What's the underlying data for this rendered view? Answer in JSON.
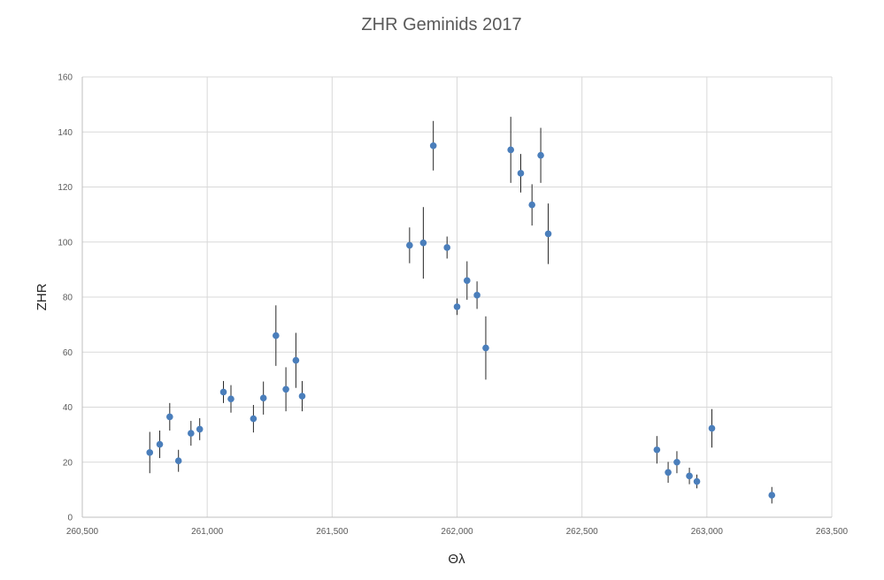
{
  "chart_data": {
    "type": "scatter",
    "title": "ZHR Geminids 2017",
    "xlabel": "Θλ",
    "ylabel": "ZHR",
    "xlim": [
      260500,
      263500
    ],
    "ylim": [
      0,
      160
    ],
    "x_ticks": [
      260500,
      261000,
      261500,
      262000,
      262500,
      263000,
      263500
    ],
    "x_tick_labels": [
      "260,500",
      "261,000",
      "261,500",
      "262,000",
      "262,500",
      "263,000",
      "263,500"
    ],
    "y_ticks": [
      0,
      20,
      40,
      60,
      80,
      100,
      120,
      140,
      160
    ],
    "y_tick_labels": [
      "0",
      "20",
      "40",
      "60",
      "80",
      "100",
      "120",
      "140",
      "160"
    ],
    "grid": true,
    "legend": "none",
    "marker_color": "#4a7ebb",
    "errorbar_color": "#262626",
    "points": [
      {
        "x": 260770,
        "y": 23.5,
        "err": 7.5
      },
      {
        "x": 260810,
        "y": 26.5,
        "err": 5
      },
      {
        "x": 260850,
        "y": 36.5,
        "err": 5
      },
      {
        "x": 260885,
        "y": 20.5,
        "err": 4
      },
      {
        "x": 260935,
        "y": 30.5,
        "err": 4.5
      },
      {
        "x": 260970,
        "y": 32,
        "err": 4
      },
      {
        "x": 261065,
        "y": 45.5,
        "err": 4
      },
      {
        "x": 261095,
        "y": 43,
        "err": 5
      },
      {
        "x": 261185,
        "y": 35.8,
        "err": 5
      },
      {
        "x": 261225,
        "y": 43.3,
        "err": 6
      },
      {
        "x": 261275,
        "y": 66,
        "err": 11
      },
      {
        "x": 261315,
        "y": 46.5,
        "err": 8
      },
      {
        "x": 261355,
        "y": 57,
        "err": 10
      },
      {
        "x": 261380,
        "y": 44,
        "err": 5.5
      },
      {
        "x": 261810,
        "y": 98.8,
        "err": 6.5
      },
      {
        "x": 261865,
        "y": 99.7,
        "err": 13
      },
      {
        "x": 261905,
        "y": 135,
        "err": 9
      },
      {
        "x": 261960,
        "y": 98,
        "err": 4
      },
      {
        "x": 262000,
        "y": 76.5,
        "err": 3
      },
      {
        "x": 262040,
        "y": 86,
        "err": 7
      },
      {
        "x": 262080,
        "y": 80.7,
        "err": 5
      },
      {
        "x": 262115,
        "y": 61.5,
        "err": 11.5
      },
      {
        "x": 262215,
        "y": 133.5,
        "err": 12
      },
      {
        "x": 262255,
        "y": 125,
        "err": 7
      },
      {
        "x": 262300,
        "y": 113.5,
        "err": 7.5
      },
      {
        "x": 262335,
        "y": 131.5,
        "err": 10
      },
      {
        "x": 262365,
        "y": 103,
        "err": 11
      },
      {
        "x": 262800,
        "y": 24.5,
        "err": 5
      },
      {
        "x": 262845,
        "y": 16.3,
        "err": 3.8
      },
      {
        "x": 262880,
        "y": 20,
        "err": 4
      },
      {
        "x": 262930,
        "y": 15,
        "err": 3
      },
      {
        "x": 262960,
        "y": 13,
        "err": 2.5
      },
      {
        "x": 263020,
        "y": 32.3,
        "err": 7
      },
      {
        "x": 263260,
        "y": 8,
        "err": 3
      }
    ]
  }
}
